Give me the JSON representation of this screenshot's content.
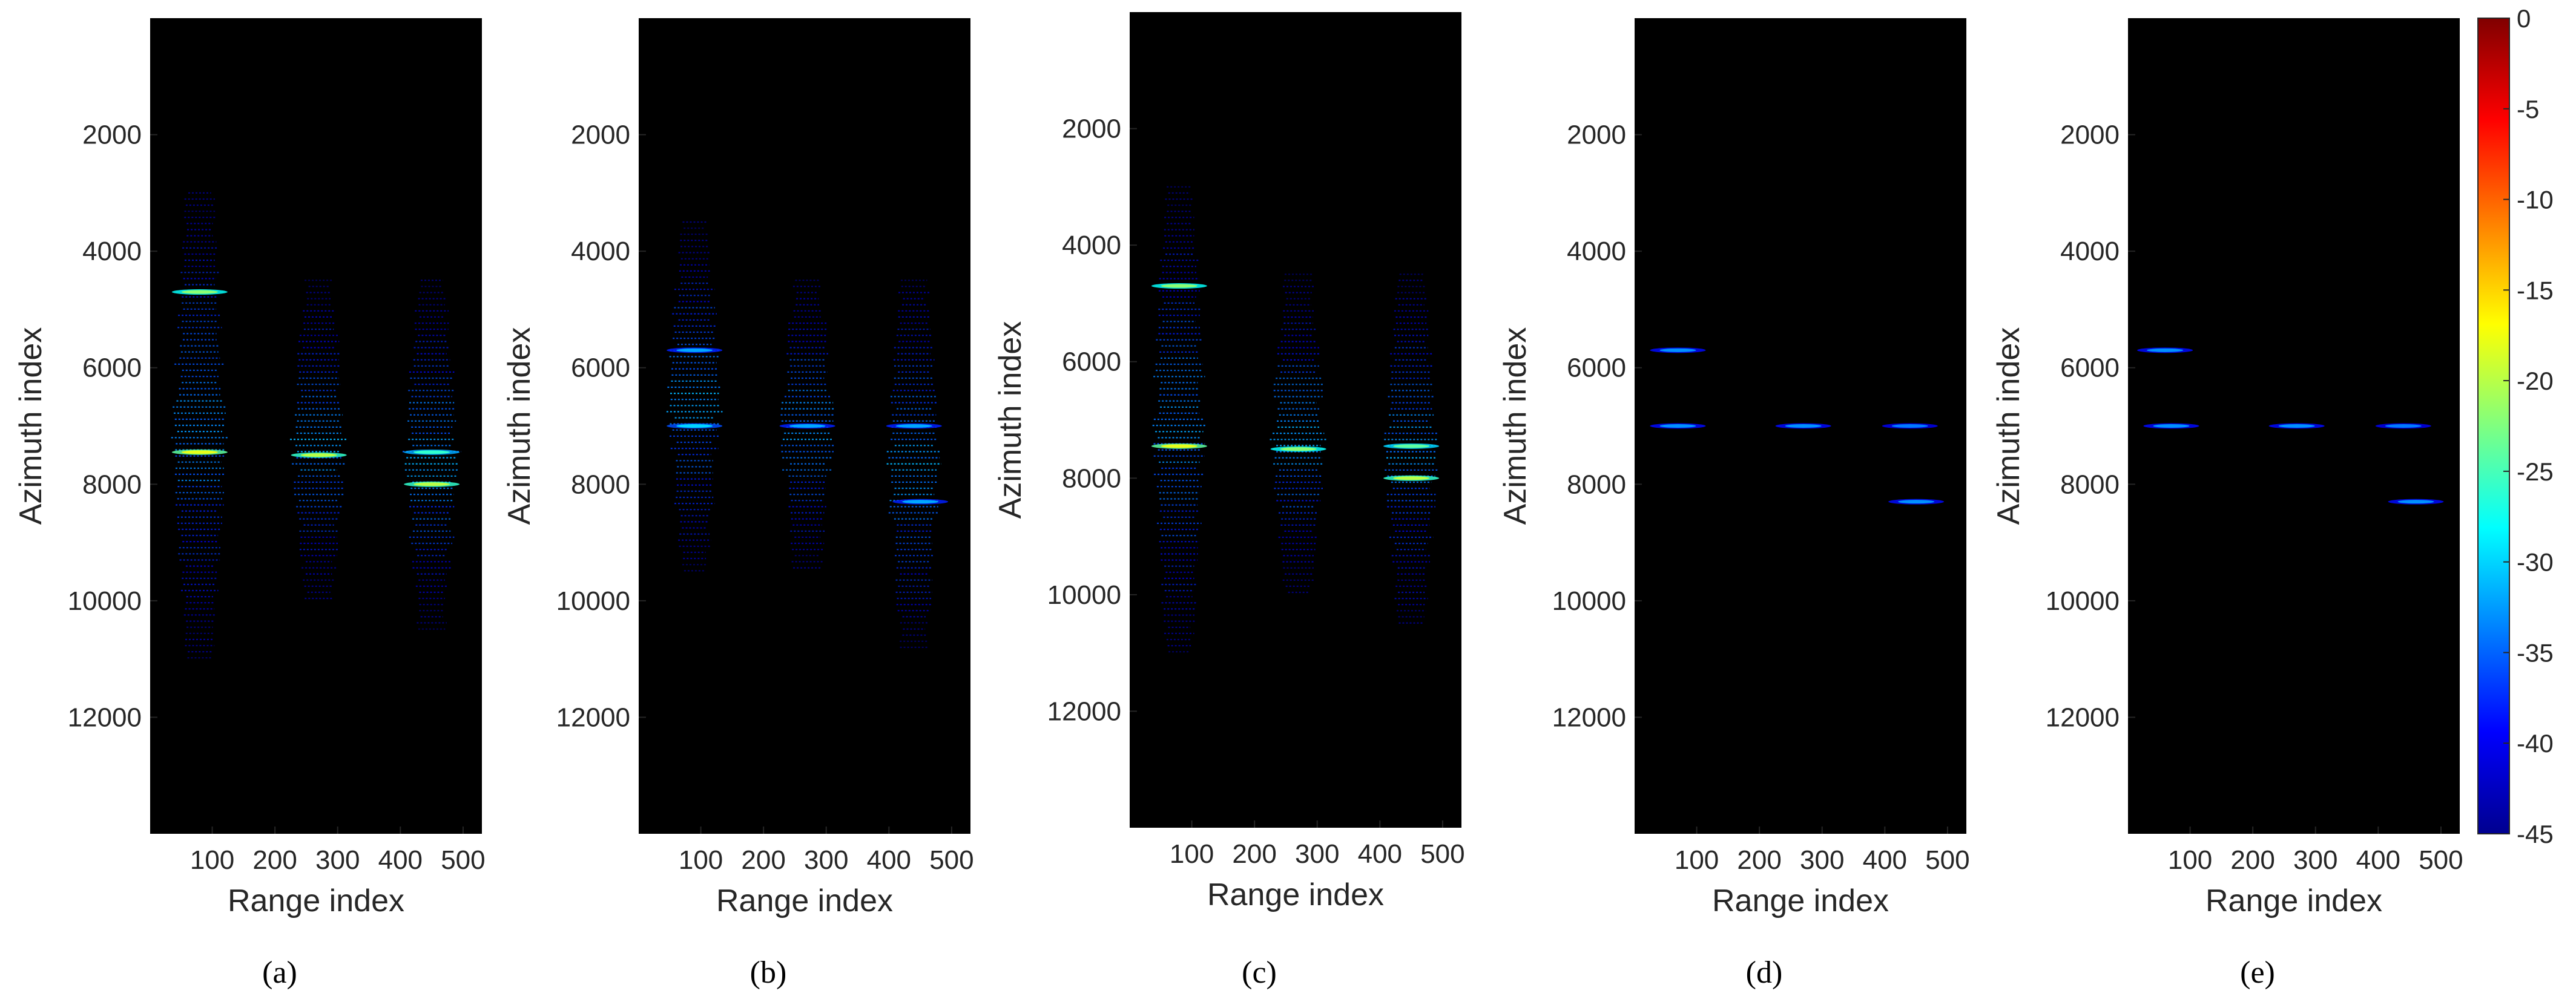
{
  "chart_data": {
    "type": "heatmap",
    "colormap": "jet",
    "background": "#000000",
    "x": {
      "label": "Range index",
      "ticks": [
        100,
        200,
        300,
        400,
        500
      ],
      "range": [
        1,
        530
      ]
    },
    "y": {
      "label": "Azimuth index",
      "ticks": [
        2000,
        4000,
        6000,
        8000,
        10000,
        12000
      ],
      "range": [
        0,
        14000
      ],
      "reversed": true
    },
    "colorbar": {
      "ticks": [
        0,
        -5,
        -10,
        -15,
        -20,
        -25,
        -30,
        -35,
        -40,
        -45
      ],
      "range": [
        -45,
        0
      ]
    },
    "panels": [
      {
        "label": "a",
        "stripes": [
          {
            "range_center": 80,
            "azimuth_from": 3000,
            "azimuth_to": 11000
          },
          {
            "range_center": 270,
            "azimuth_from": 4500,
            "azimuth_to": 10000
          },
          {
            "range_center": 450,
            "azimuth_from": 4500,
            "azimuth_to": 10500
          }
        ],
        "targets": [
          {
            "range": 80,
            "azimuth": 4700,
            "level": -22
          },
          {
            "range": 80,
            "azimuth": 7450,
            "level": -18
          },
          {
            "range": 270,
            "azimuth": 7500,
            "level": -20
          },
          {
            "range": 450,
            "azimuth": 7450,
            "level": -26
          },
          {
            "range": 450,
            "azimuth": 8000,
            "level": -20
          }
        ]
      },
      {
        "label": "b",
        "stripes": [
          {
            "range_center": 90,
            "azimuth_from": 3500,
            "azimuth_to": 9500
          },
          {
            "range_center": 270,
            "azimuth_from": 4500,
            "azimuth_to": 9500
          },
          {
            "range_center": 440,
            "azimuth_from": 4500,
            "azimuth_to": 10800
          }
        ],
        "targets": [
          {
            "range": 90,
            "azimuth": 5700,
            "level": -32
          },
          {
            "range": 90,
            "azimuth": 7000,
            "level": -30
          },
          {
            "range": 270,
            "azimuth": 7000,
            "level": -32
          },
          {
            "range": 440,
            "azimuth": 7000,
            "level": -32
          },
          {
            "range": 450,
            "azimuth": 8300,
            "level": -32
          }
        ]
      },
      {
        "label": "c",
        "stripes": [
          {
            "range_center": 80,
            "azimuth_from": 3000,
            "azimuth_to": 11000
          },
          {
            "range_center": 270,
            "azimuth_from": 4500,
            "azimuth_to": 10000
          },
          {
            "range_center": 450,
            "azimuth_from": 4500,
            "azimuth_to": 10500
          }
        ],
        "targets": [
          {
            "range": 80,
            "azimuth": 4700,
            "level": -22
          },
          {
            "range": 80,
            "azimuth": 7450,
            "level": -18
          },
          {
            "range": 270,
            "azimuth": 7500,
            "level": -22
          },
          {
            "range": 450,
            "azimuth": 7450,
            "level": -24
          },
          {
            "range": 450,
            "azimuth": 8000,
            "level": -20
          }
        ]
      },
      {
        "label": "d",
        "stripes": [],
        "targets": [
          {
            "range": 70,
            "azimuth": 5700,
            "level": -33
          },
          {
            "range": 70,
            "azimuth": 7000,
            "level": -33
          },
          {
            "range": 270,
            "azimuth": 7000,
            "level": -33
          },
          {
            "range": 440,
            "azimuth": 7000,
            "level": -34
          },
          {
            "range": 450,
            "azimuth": 8300,
            "level": -33
          }
        ]
      },
      {
        "label": "e",
        "stripes": [],
        "targets": [
          {
            "range": 60,
            "azimuth": 5700,
            "level": -33
          },
          {
            "range": 70,
            "azimuth": 7000,
            "level": -33
          },
          {
            "range": 270,
            "azimuth": 7000,
            "level": -33
          },
          {
            "range": 440,
            "azimuth": 7000,
            "level": -34
          },
          {
            "range": 460,
            "azimuth": 8300,
            "level": -33
          }
        ]
      }
    ]
  }
}
